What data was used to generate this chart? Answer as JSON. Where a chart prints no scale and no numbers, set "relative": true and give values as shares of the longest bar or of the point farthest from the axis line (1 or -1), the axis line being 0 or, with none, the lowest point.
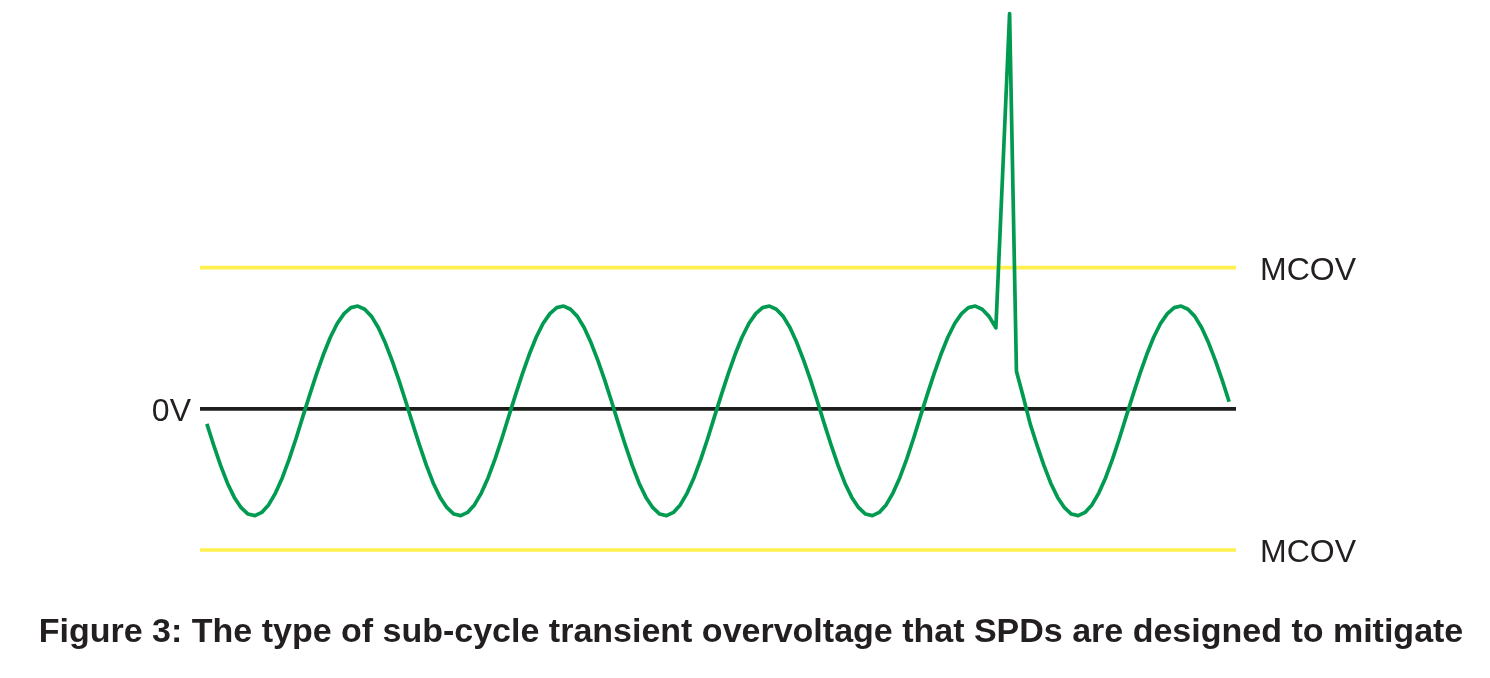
{
  "chart_data": {
    "type": "line",
    "title": "Figure 3: The type of sub-cycle transient overvoltage that SPDs are designed to mitigate",
    "relative": true,
    "categories": [
      null,
      null,
      null,
      null,
      null,
      null,
      null,
      null,
      null,
      null,
      null,
      null,
      null,
      null,
      null,
      null,
      null,
      null,
      null,
      null,
      null,
      null,
      null,
      null,
      null,
      null,
      null,
      null,
      null,
      null,
      null,
      null,
      null,
      null,
      null,
      null,
      null,
      null,
      null,
      null,
      null,
      null,
      null,
      null,
      null,
      null,
      null,
      null,
      null,
      null,
      null,
      null,
      null,
      null,
      null,
      null,
      null,
      null,
      null,
      null,
      null,
      null,
      null,
      null,
      null,
      null,
      null,
      null,
      null,
      null,
      null,
      null,
      null,
      null,
      null,
      null,
      null,
      null,
      null,
      null,
      null,
      null,
      null,
      null,
      null,
      null,
      null,
      null,
      null,
      null,
      null,
      null,
      null,
      null,
      null,
      null,
      null,
      null,
      null,
      null,
      null,
      null,
      null,
      null,
      null,
      null,
      null,
      null,
      null,
      null,
      null,
      null,
      null,
      null,
      null,
      null,
      null,
      null,
      null,
      null,
      null,
      null,
      null,
      null,
      null,
      null,
      null,
      null,
      null,
      null,
      null,
      null,
      null,
      null,
      null,
      null,
      null,
      null,
      null,
      null,
      null,
      null,
      null,
      null,
      null,
      null,
      null,
      null,
      null,
      null
    ],
    "series": [
      {
        "color": "#009a50",
        "values": [
          -0.038,
          -0.092,
          -0.143,
          -0.188,
          -0.224,
          -0.25,
          -0.266,
          -0.27,
          -0.262,
          -0.243,
          -0.213,
          -0.174,
          -0.127,
          -0.075,
          -0.019,
          0.036,
          0.089,
          0.138,
          0.181,
          0.216,
          0.241,
          0.256,
          0.26,
          0.252,
          0.234,
          0.205,
          0.167,
          0.122,
          0.072,
          0.018,
          -0.038,
          -0.092,
          -0.143,
          -0.188,
          -0.224,
          -0.25,
          -0.266,
          -0.27,
          -0.262,
          -0.243,
          -0.213,
          -0.174,
          -0.127,
          -0.075,
          -0.019,
          0.036,
          0.089,
          0.138,
          0.181,
          0.216,
          0.241,
          0.256,
          0.26,
          0.252,
          0.234,
          0.205,
          0.167,
          0.122,
          0.072,
          0.018,
          -0.038,
          -0.092,
          -0.143,
          -0.188,
          -0.224,
          -0.25,
          -0.266,
          -0.27,
          -0.262,
          -0.243,
          -0.213,
          -0.174,
          -0.127,
          -0.075,
          -0.019,
          0.036,
          0.089,
          0.138,
          0.181,
          0.216,
          0.241,
          0.256,
          0.26,
          0.252,
          0.234,
          0.205,
          0.167,
          0.122,
          0.072,
          0.018,
          -0.038,
          -0.092,
          -0.143,
          -0.188,
          -0.224,
          -0.25,
          -0.266,
          -0.27,
          -0.262,
          -0.243,
          -0.213,
          -0.174,
          -0.127,
          -0.075,
          -0.019,
          0.036,
          0.089,
          0.138,
          0.181,
          0.216,
          0.241,
          0.256,
          0.26,
          0.252,
          0.234,
          0.205,
          0.6,
          1,
          0.095,
          0.03,
          -0.038,
          -0.092,
          -0.143,
          -0.188,
          -0.224,
          -0.25,
          -0.266,
          -0.27,
          -0.262,
          -0.243,
          -0.213,
          -0.174,
          -0.127,
          -0.075,
          -0.019,
          0.036,
          0.089,
          0.138,
          0.181,
          0.216,
          0.241,
          0.256,
          0.26,
          0.252,
          0.234,
          0.205,
          0.167,
          0.122,
          0.072,
          0.018
        ]
      }
    ],
    "ref_lines": [
      {
        "axis": "y",
        "value": 0,
        "label": "0V",
        "color": "#1d1d1b"
      },
      {
        "axis": "y",
        "value": 0.357,
        "label": "MCOV",
        "color": "#fff04e"
      },
      {
        "axis": "y",
        "value": -0.357,
        "label": "MCOV",
        "color": "#fff04e"
      }
    ]
  }
}
